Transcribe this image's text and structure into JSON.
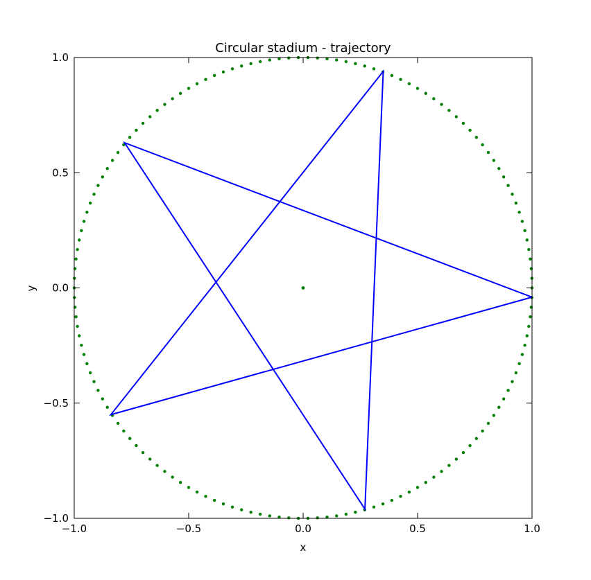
{
  "chart_data": {
    "type": "line",
    "title": "Circular stadium - trajectory",
    "xlabel": "x",
    "ylabel": "y",
    "xlim": [
      -1.0,
      1.0
    ],
    "ylim": [
      -1.0,
      1.0
    ],
    "grid": false,
    "xticks": [
      -1.0,
      -0.5,
      0.0,
      0.5,
      1.0
    ],
    "yticks": [
      -1.0,
      -0.5,
      0.0,
      0.5,
      1.0
    ],
    "xtick_labels": [
      "−1.0",
      "−0.5",
      "0.0",
      "0.5",
      "1.0"
    ],
    "ytick_labels": [
      "−1.0",
      "−0.5",
      "0.0",
      "0.5",
      "1.0"
    ],
    "boundary": {
      "shape": "circle",
      "center": [
        0.0,
        0.0
      ],
      "radius": 1.0,
      "marker_count": 150,
      "color": "#007f00",
      "style": "dots"
    },
    "center_point": {
      "x": 0.0,
      "y": 0.0,
      "color": "#007f00"
    },
    "series": [
      {
        "color": "#0000ff",
        "x": [
          1.0,
          -0.84,
          0.35,
          0.27,
          -0.78,
          1.0
        ],
        "y": [
          -0.04,
          -0.55,
          0.94,
          -0.96,
          0.63,
          -0.04
        ]
      }
    ]
  }
}
